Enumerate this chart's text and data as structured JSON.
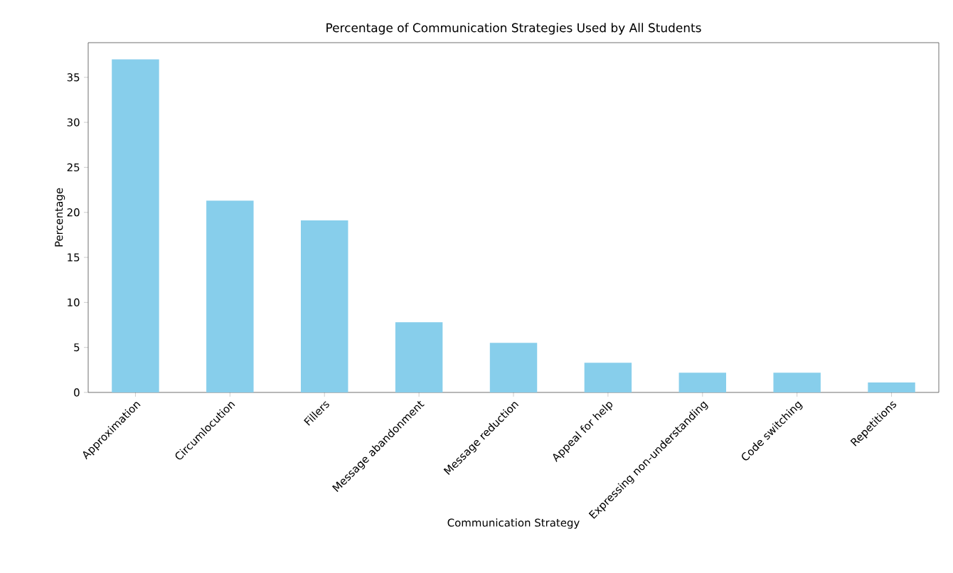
{
  "chart_data": {
    "type": "bar",
    "title": "Percentage of Communication Strategies Used by All Students",
    "xlabel": "Communication Strategy",
    "ylabel": "Percentage",
    "categories": [
      "Approximation",
      "Circumlocution",
      "Fillers",
      "Message abandonment",
      "Message reduction",
      "Appeal for help",
      "Expressing non-understanding",
      "Code switching",
      "Repetitions"
    ],
    "values": [
      37.0,
      21.3,
      19.1,
      7.8,
      5.5,
      3.3,
      2.2,
      2.2,
      1.1
    ],
    "color": "#87ceeb",
    "ylim": [
      0,
      38.85
    ],
    "yticks": [
      0,
      5,
      10,
      15,
      20,
      25,
      30,
      35
    ],
    "grid": false
  }
}
